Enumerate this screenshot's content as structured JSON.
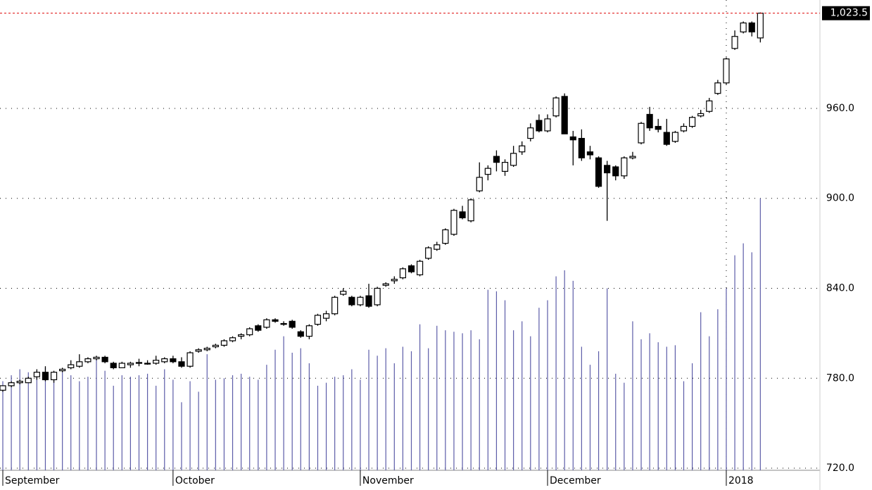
{
  "chart_data": {
    "type": "candlestick",
    "open": [
      772,
      775,
      777,
      777,
      781,
      784,
      779,
      785,
      787,
      788,
      791,
      793,
      794,
      790,
      787,
      789,
      790,
      790,
      790,
      791,
      793,
      791,
      788,
      798,
      799,
      801,
      802,
      805,
      808,
      809,
      815,
      814,
      819,
      816,
      818,
      811,
      808,
      816,
      820,
      823,
      836,
      834,
      829,
      835,
      829,
      842,
      845,
      847,
      855,
      849,
      860,
      866,
      870,
      876,
      891,
      885,
      905,
      916,
      928,
      918,
      922,
      931,
      940,
      952,
      945,
      955,
      968,
      941,
      940,
      931,
      927,
      922,
      921,
      915,
      927,
      937,
      956,
      948,
      944,
      938,
      945,
      948,
      955,
      958,
      970,
      977,
      1000,
      1011,
      1017,
      1007
    ],
    "high": [
      775,
      778,
      779,
      781,
      786,
      788,
      785,
      787,
      792,
      796,
      794,
      795,
      795,
      791,
      791,
      791,
      793,
      792,
      795,
      794,
      795,
      794,
      798,
      800,
      801,
      803,
      806,
      808,
      810,
      814,
      816,
      820,
      820,
      818,
      819,
      812,
      816,
      823,
      825,
      835,
      840,
      835,
      835,
      843,
      841,
      844,
      848,
      854,
      856,
      859,
      868,
      871,
      880,
      893,
      895,
      900,
      924,
      922,
      932,
      926,
      935,
      938,
      950,
      956,
      956,
      968,
      970,
      945,
      946,
      935,
      928,
      925,
      922,
      928,
      931,
      951,
      961,
      953,
      953,
      945,
      950,
      955,
      959,
      967,
      979,
      994,
      1012,
      1018,
      1018,
      1024
    ],
    "low": [
      771,
      774,
      776,
      777,
      779,
      778,
      777,
      784,
      786,
      787,
      790,
      792,
      790,
      786,
      787,
      787,
      788,
      789,
      789,
      790,
      790,
      787,
      787,
      797,
      798,
      800,
      801,
      804,
      806,
      808,
      811,
      813,
      817,
      815,
      813,
      807,
      806,
      815,
      818,
      822,
      835,
      828,
      828,
      827,
      828,
      841,
      843,
      846,
      850,
      848,
      859,
      865,
      869,
      875,
      886,
      884,
      904,
      912,
      918,
      915,
      921,
      929,
      938,
      944,
      944,
      954,
      943,
      922,
      925,
      926,
      907,
      885,
      912,
      913,
      926,
      936,
      945,
      944,
      935,
      937,
      944,
      947,
      954,
      957,
      969,
      976,
      999,
      1010,
      1008,
      1004
    ],
    "close": [
      775,
      777,
      778,
      780,
      784,
      779,
      784,
      786,
      789,
      791,
      793,
      794,
      791,
      787,
      790,
      790,
      790.5,
      789.5,
      792,
      793,
      791,
      788,
      797,
      799,
      800,
      802,
      805,
      807,
      809,
      813,
      812,
      819,
      818,
      816.5,
      814,
      808,
      815,
      822,
      823,
      834,
      838,
      829,
      834,
      828,
      840,
      843,
      846,
      853,
      851,
      858,
      867,
      869,
      879,
      892,
      887,
      899,
      914,
      920,
      924,
      924,
      930,
      935,
      947,
      945,
      953,
      967,
      943,
      939,
      927,
      929,
      908,
      917,
      915,
      927,
      928,
      950,
      947,
      946,
      936,
      944,
      948,
      954,
      956.5,
      965,
      977,
      993,
      1008,
      1017,
      1011,
      1023.5
    ],
    "volume": [
      778,
      782,
      786,
      784,
      785,
      787,
      780,
      784,
      782,
      778,
      781,
      794,
      785,
      775,
      782,
      781,
      782,
      783,
      775,
      786,
      779,
      764,
      778,
      771,
      796,
      779,
      780,
      782,
      783,
      781,
      779,
      789,
      799,
      808,
      797,
      800,
      790,
      775,
      777,
      781,
      782,
      786,
      779,
      799,
      795,
      800,
      790,
      801,
      798,
      816,
      800,
      815,
      812,
      811,
      810,
      812,
      806,
      839,
      838,
      832,
      812,
      818,
      808,
      827,
      832,
      848,
      852,
      845,
      801,
      789,
      798,
      840,
      783,
      777,
      818,
      806,
      810,
      804,
      801,
      802,
      778,
      790,
      824,
      808,
      826,
      840,
      862,
      870,
      864,
      900
    ],
    "up_color": "#ffffff",
    "down_color": "#000000",
    "volume_color": "#5c5ca8",
    "xlim": [
      -0.33,
      96
    ],
    "xticks": [
      {
        "value": 0,
        "label": "September"
      },
      {
        "value": 20,
        "label": "October"
      },
      {
        "value": 42,
        "label": "November"
      },
      {
        "value": 64,
        "label": "December"
      },
      {
        "value": 85,
        "label": "2018"
      }
    ],
    "vertical_grid": [
      85
    ],
    "ylim": [
      718.6,
      1032.3
    ],
    "yticks": [
      {
        "value": 720,
        "label": "720.0"
      },
      {
        "value": 780,
        "label": "780.0"
      },
      {
        "value": 840,
        "label": "840.0"
      },
      {
        "value": 900,
        "label": "900.0"
      },
      {
        "value": 960,
        "label": "960.0"
      }
    ],
    "grid": true,
    "last_price": {
      "value": 1023.5,
      "label": "1,023.5"
    }
  }
}
